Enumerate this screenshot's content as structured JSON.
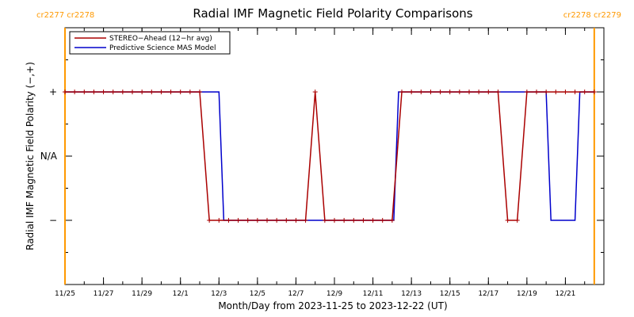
{
  "chart_data": {
    "type": "line",
    "title": "Radial IMF Magnetic Field Polarity Comparisons",
    "xlabel": "Month/Day from 2023-11-25 to 2023-12-22 (UT)",
    "ylabel": "Radial IMF Magnetic Field Polarity (−,+)",
    "xlim": [
      "2023-11-25",
      "2023-12-23"
    ],
    "ylim": [
      -2,
      2
    ],
    "x_tick_labels": [
      "11/25",
      "11/27",
      "11/29",
      "12/1",
      "12/3",
      "12/5",
      "12/7",
      "12/9",
      "12/11",
      "12/13",
      "12/15",
      "12/17",
      "12/19",
      "12/21"
    ],
    "x_tick_dates": [
      "2023-11-25",
      "2023-11-27",
      "2023-11-29",
      "2023-12-01",
      "2023-12-03",
      "2023-12-05",
      "2023-12-07",
      "2023-12-09",
      "2023-12-11",
      "2023-12-13",
      "2023-12-15",
      "2023-12-17",
      "2023-12-19",
      "2023-12-21"
    ],
    "y_ticks": [
      {
        "value": 1,
        "label": "+"
      },
      {
        "value": 0,
        "label": "N/A"
      },
      {
        "value": -1,
        "label": "−"
      }
    ],
    "carrington_rotations": [
      {
        "date": "2023-11-25",
        "labels": [
          "cr2277",
          "cr2278"
        ],
        "side": "left",
        "color": "#ff9900"
      },
      {
        "date": "2023-12-22 12:00",
        "labels": [
          "cr2278",
          "cr2279"
        ],
        "side": "right",
        "color": "#ff9900"
      }
    ],
    "legend_position": "top-left",
    "series": [
      {
        "name": "STEREO−Ahead (12−hr avg)",
        "color": "#aa0000",
        "marker": "+",
        "points": [
          [
            "2023-11-25 00:00",
            1
          ],
          [
            "2023-11-25 12:00",
            1
          ],
          [
            "2023-11-26 00:00",
            1
          ],
          [
            "2023-11-26 12:00",
            1
          ],
          [
            "2023-11-27 00:00",
            1
          ],
          [
            "2023-11-27 12:00",
            1
          ],
          [
            "2023-11-28 00:00",
            1
          ],
          [
            "2023-11-28 12:00",
            1
          ],
          [
            "2023-11-29 00:00",
            1
          ],
          [
            "2023-11-29 12:00",
            1
          ],
          [
            "2023-11-30 00:00",
            1
          ],
          [
            "2023-11-30 12:00",
            1
          ],
          [
            "2023-12-01 00:00",
            1
          ],
          [
            "2023-12-01 12:00",
            1
          ],
          [
            "2023-12-02 00:00",
            1
          ],
          [
            "2023-12-02 12:00",
            -1
          ],
          [
            "2023-12-03 00:00",
            -1
          ],
          [
            "2023-12-03 12:00",
            -1
          ],
          [
            "2023-12-04 00:00",
            -1
          ],
          [
            "2023-12-04 12:00",
            -1
          ],
          [
            "2023-12-05 00:00",
            -1
          ],
          [
            "2023-12-05 12:00",
            -1
          ],
          [
            "2023-12-06 00:00",
            -1
          ],
          [
            "2023-12-06 12:00",
            -1
          ],
          [
            "2023-12-07 00:00",
            -1
          ],
          [
            "2023-12-07 12:00",
            -1
          ],
          [
            "2023-12-08 00:00",
            1
          ],
          [
            "2023-12-08 12:00",
            -1
          ],
          [
            "2023-12-09 00:00",
            -1
          ],
          [
            "2023-12-09 12:00",
            -1
          ],
          [
            "2023-12-10 00:00",
            -1
          ],
          [
            "2023-12-10 12:00",
            -1
          ],
          [
            "2023-12-11 00:00",
            -1
          ],
          [
            "2023-12-11 12:00",
            -1
          ],
          [
            "2023-12-12 00:00",
            -1
          ],
          [
            "2023-12-12 12:00",
            1
          ],
          [
            "2023-12-13 00:00",
            1
          ],
          [
            "2023-12-13 12:00",
            1
          ],
          [
            "2023-12-14 00:00",
            1
          ],
          [
            "2023-12-14 12:00",
            1
          ],
          [
            "2023-12-15 00:00",
            1
          ],
          [
            "2023-12-15 12:00",
            1
          ],
          [
            "2023-12-16 00:00",
            1
          ],
          [
            "2023-12-16 12:00",
            1
          ],
          [
            "2023-12-17 00:00",
            1
          ],
          [
            "2023-12-17 12:00",
            1
          ],
          [
            "2023-12-18 00:00",
            -1
          ],
          [
            "2023-12-18 12:00",
            -1
          ],
          [
            "2023-12-19 00:00",
            1
          ],
          [
            "2023-12-19 12:00",
            1
          ],
          [
            "2023-12-20 00:00",
            1
          ],
          [
            "2023-12-20 12:00",
            1
          ],
          [
            "2023-12-21 00:00",
            1
          ],
          [
            "2023-12-21 12:00",
            1
          ],
          [
            "2023-12-22 00:00",
            1
          ],
          [
            "2023-12-22 12:00",
            1
          ]
        ]
      },
      {
        "name": "Predictive Science MAS Model",
        "color": "#0000cc",
        "marker": "none",
        "points": [
          [
            "2023-11-25 00:00",
            1
          ],
          [
            "2023-12-03 00:00",
            1
          ],
          [
            "2023-12-03 06:00",
            -1
          ],
          [
            "2023-12-12 02:00",
            -1
          ],
          [
            "2023-12-12 08:00",
            1
          ],
          [
            "2023-12-20 00:00",
            1
          ],
          [
            "2023-12-20 06:00",
            -1
          ],
          [
            "2023-12-21 12:00",
            -1
          ],
          [
            "2023-12-21 18:00",
            1
          ],
          [
            "2023-12-22 12:00",
            1
          ]
        ]
      }
    ]
  }
}
